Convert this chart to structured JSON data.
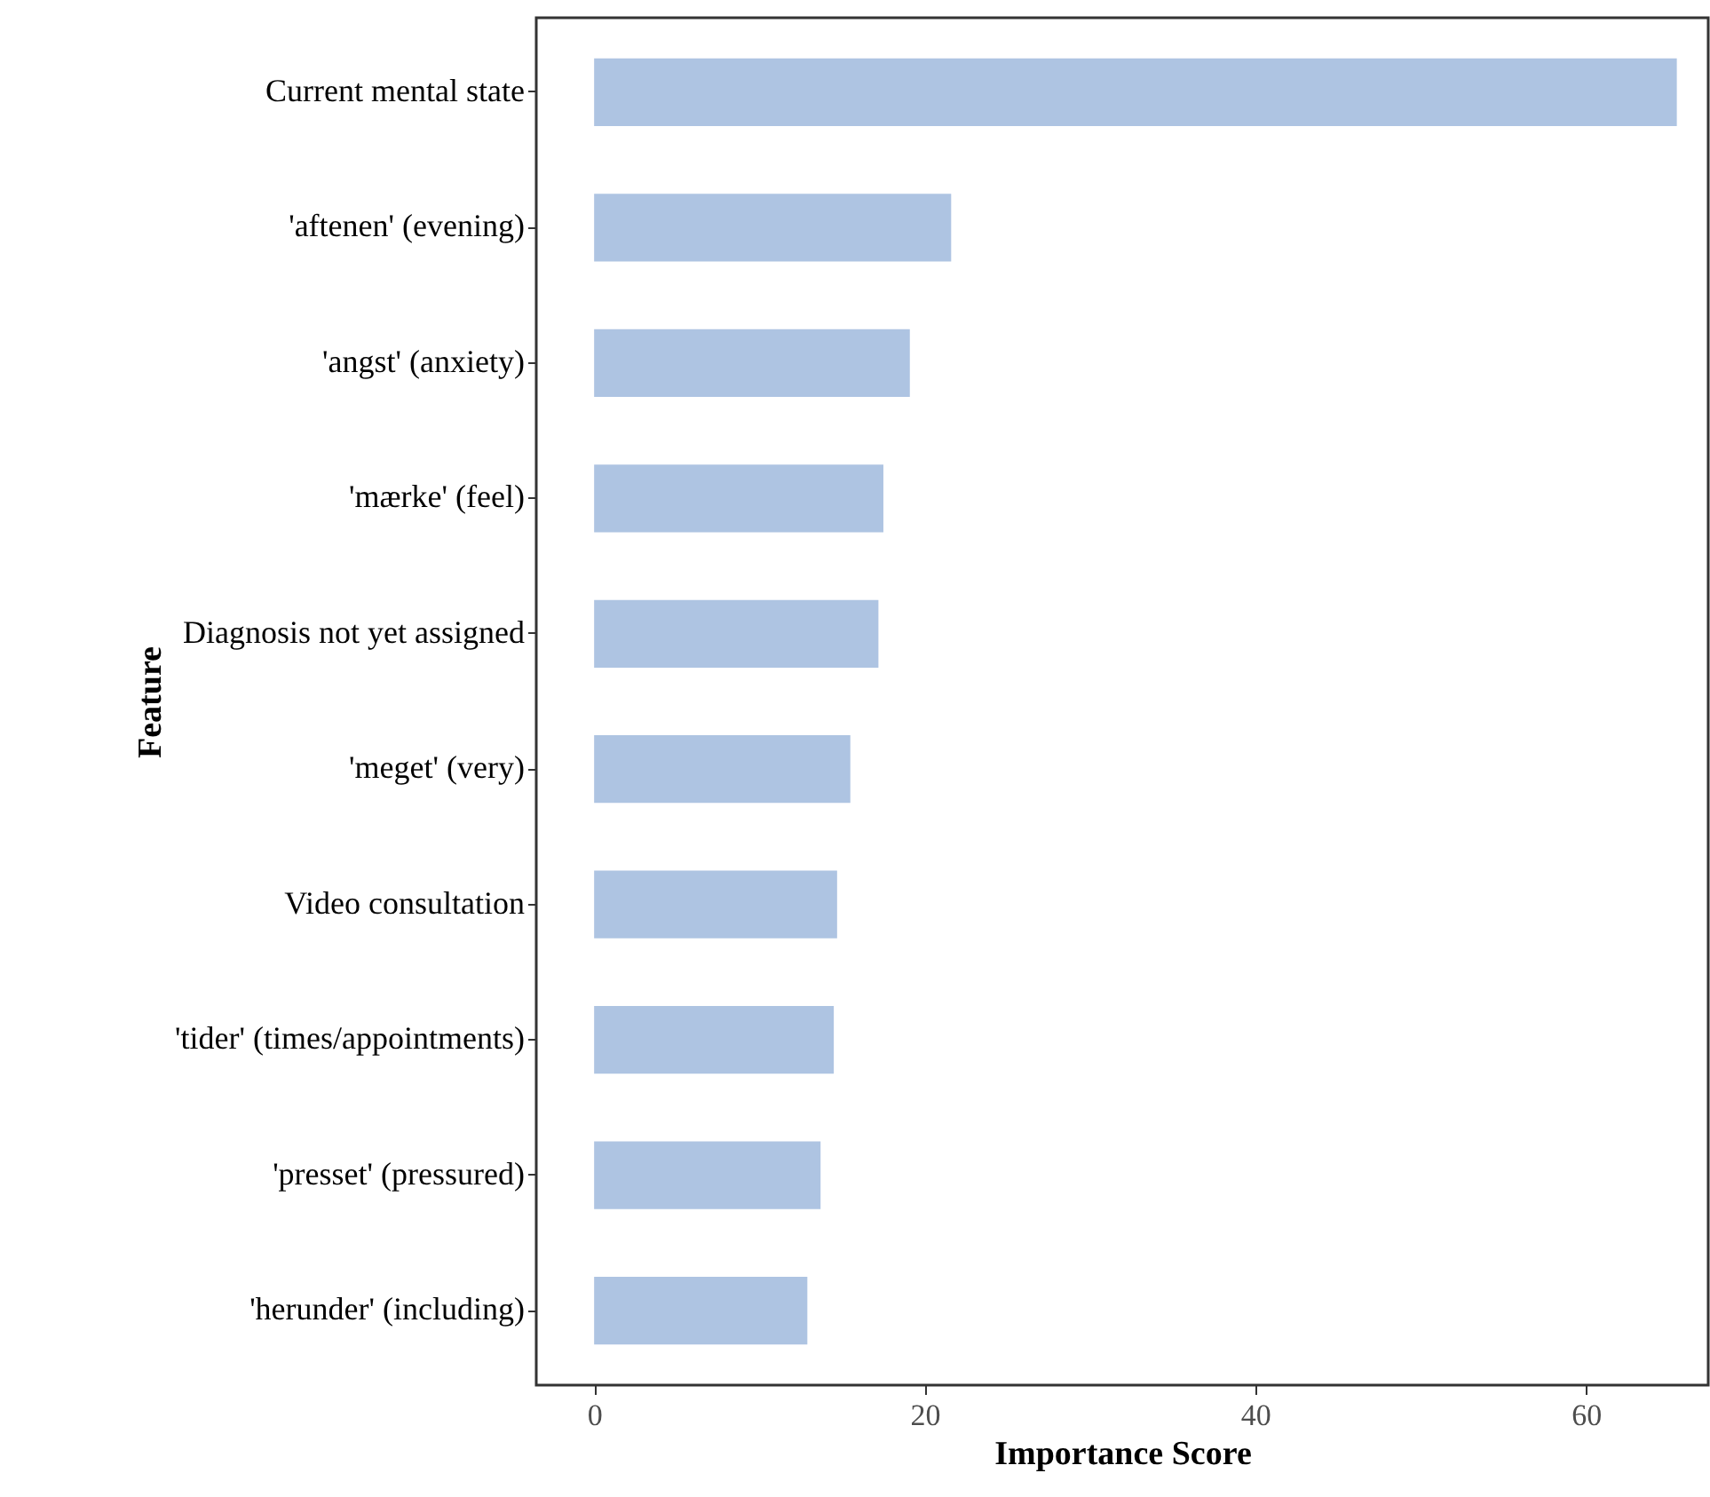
{
  "chart_data": {
    "type": "bar",
    "orientation": "horizontal",
    "xlabel": "Importance Score",
    "ylabel": "Feature",
    "categories": [
      "Current mental state",
      "'aftenen' (evening)",
      "'angst' (anxiety)",
      "'mærke' (feel)",
      "Diagnosis not yet assigned",
      "'meget' (very)",
      "Video consultation",
      "'tider' (times/appointments)",
      "'presset' (pressured)",
      "'herunder' (including)"
    ],
    "values": [
      65.5,
      21.6,
      19.1,
      17.5,
      17.2,
      15.5,
      14.7,
      14.5,
      13.7,
      12.9
    ],
    "color": "#aec4e2",
    "xlim": [
      -3.5,
      67.4
    ],
    "xticks": [
      0,
      20,
      40,
      60
    ],
    "grid": false
  }
}
